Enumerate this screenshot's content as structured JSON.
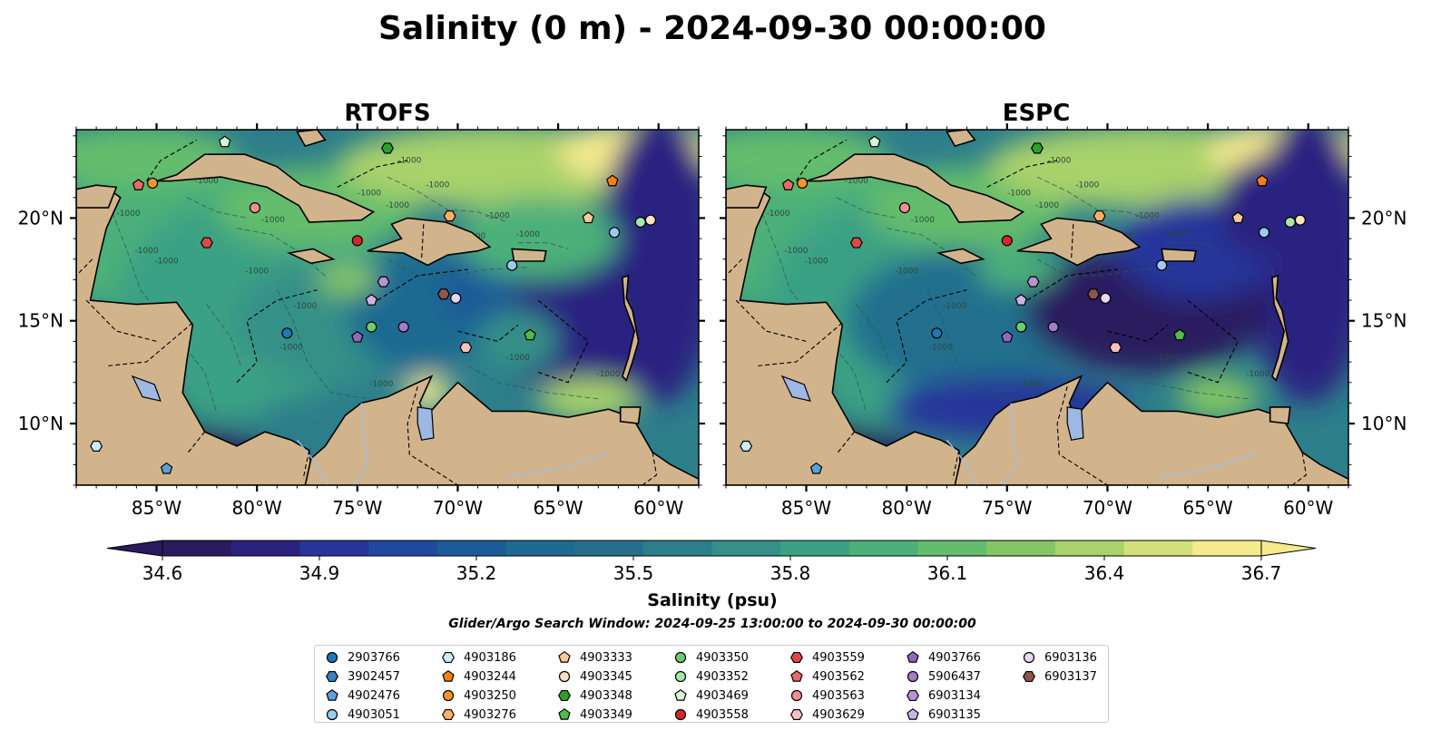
{
  "figure": {
    "title": "Salinity (0 m) - 2024-09-30 00:00:00",
    "search_window": "Glider/Argo Search Window: 2024-09-25 13:00:00 to 2024-09-30 00:00:00"
  },
  "panels": [
    {
      "title": "RTOFS",
      "model": "rtofs"
    },
    {
      "title": "ESPC",
      "model": "espc"
    }
  ],
  "axes": {
    "lon_range": [
      -89,
      -58
    ],
    "lat_range": [
      7,
      24.3
    ],
    "lon_ticks": [
      -85,
      -80,
      -75,
      -70,
      -65,
      -60
    ],
    "lon_tick_labels": [
      "85°W",
      "80°W",
      "75°W",
      "70°W",
      "65°W",
      "60°W"
    ],
    "lat_ticks": [
      10,
      15,
      20
    ],
    "lat_tick_labels": [
      "10°N",
      "15°N",
      "20°N"
    ]
  },
  "contour_label": "-1000",
  "colorbar": {
    "label": "Salinity (psu)",
    "min": 34.6,
    "max": 36.7,
    "ticks": [
      34.6,
      34.9,
      35.2,
      35.5,
      35.8,
      36.1,
      36.4,
      36.7
    ],
    "tick_labels": [
      "34.6",
      "34.9",
      "35.2",
      "35.5",
      "35.8",
      "36.1",
      "36.4",
      "36.7"
    ],
    "extend": "both",
    "colors": [
      "#2a1a5e",
      "#2b2280",
      "#27349a",
      "#1f489f",
      "#1a5c98",
      "#1d6a92",
      "#246f8e",
      "#2d7e8b",
      "#349088",
      "#3ba184",
      "#4bb079",
      "#64bd6c",
      "#84c663",
      "#a8d26a",
      "#d3e07a",
      "#f6ea8d"
    ]
  },
  "land_color": "#d2b48c",
  "chart_data": {
    "type": "scatter",
    "title": "Salinity (0 m) - 2024-09-30 00:00:00",
    "xlabel": "",
    "ylabel": "",
    "x_units": "degrees longitude (W negative)",
    "y_units": "degrees latitude",
    "series": [
      {
        "name": "2903766",
        "marker": "circle",
        "color": "#1f77b4",
        "points": [
          [
            -78.5,
            14.4
          ]
        ]
      },
      {
        "name": "3902457",
        "marker": "hexagon",
        "color": "#3a7fc0",
        "points": []
      },
      {
        "name": "4902476",
        "marker": "pentagon",
        "color": "#5aa0da",
        "points": [
          [
            -84.5,
            7.8
          ]
        ]
      },
      {
        "name": "4903051",
        "marker": "circle",
        "color": "#9ccbef",
        "points": [
          [
            -62.2,
            19.3
          ],
          [
            -67.3,
            17.7
          ]
        ]
      },
      {
        "name": "4903186",
        "marker": "hexagon",
        "color": "#c8ecf8",
        "points": [
          [
            -88.0,
            8.9
          ]
        ]
      },
      {
        "name": "4903244",
        "marker": "pentagon",
        "color": "#ff7f0e",
        "points": [
          [
            -62.3,
            21.8
          ]
        ]
      },
      {
        "name": "4903250",
        "marker": "circle",
        "color": "#ff9232",
        "points": [
          [
            -85.2,
            21.7
          ]
        ]
      },
      {
        "name": "4903276",
        "marker": "hexagon",
        "color": "#ffae62",
        "points": [
          [
            -70.4,
            20.1
          ]
        ]
      },
      {
        "name": "4903333",
        "marker": "pentagon",
        "color": "#ffc994",
        "points": [
          [
            -63.5,
            20.0
          ]
        ]
      },
      {
        "name": "4903345",
        "marker": "circle",
        "color": "#ffe0c0",
        "points": [
          [
            -60.4,
            19.9
          ]
        ]
      },
      {
        "name": "4903348",
        "marker": "hexagon",
        "color": "#2ca02c",
        "points": [
          [
            -73.5,
            23.4
          ]
        ]
      },
      {
        "name": "4903349",
        "marker": "pentagon",
        "color": "#4cbc4c",
        "points": [
          [
            -66.4,
            14.3
          ]
        ]
      },
      {
        "name": "4903350",
        "marker": "circle",
        "color": "#6dcc6d",
        "points": [
          [
            -74.3,
            14.7
          ]
        ]
      },
      {
        "name": "4903352",
        "marker": "circle",
        "color": "#a6e6a6",
        "points": [
          [
            -60.9,
            19.8
          ]
        ]
      },
      {
        "name": "4903469",
        "marker": "pentagon",
        "color": "#d5f7d5",
        "points": [
          [
            -81.6,
            23.7
          ]
        ]
      },
      {
        "name": "4903558",
        "marker": "circle",
        "color": "#d62728",
        "points": [
          [
            -75.0,
            18.9
          ]
        ]
      },
      {
        "name": "4903559",
        "marker": "hexagon",
        "color": "#e04848",
        "points": [
          [
            -82.5,
            18.8
          ]
        ]
      },
      {
        "name": "4903562",
        "marker": "pentagon",
        "color": "#e96a6a",
        "points": [
          [
            -85.9,
            21.6
          ]
        ]
      },
      {
        "name": "4903563",
        "marker": "circle",
        "color": "#f08f8f",
        "points": [
          [
            -80.1,
            20.5
          ]
        ]
      },
      {
        "name": "4903629",
        "marker": "hexagon",
        "color": "#f8c0c0",
        "points": [
          [
            -69.6,
            13.7
          ]
        ]
      },
      {
        "name": "4903766",
        "marker": "pentagon",
        "color": "#9467bd",
        "points": [
          [
            -75.0,
            14.2
          ]
        ]
      },
      {
        "name": "5906437",
        "marker": "circle",
        "color": "#a47cc8",
        "points": [
          [
            -72.7,
            14.7
          ]
        ]
      },
      {
        "name": "6903134",
        "marker": "hexagon",
        "color": "#b593d4",
        "points": [
          [
            -73.7,
            16.9
          ]
        ]
      },
      {
        "name": "6903135",
        "marker": "pentagon",
        "color": "#ccb3e4",
        "points": [
          [
            -74.3,
            16.0
          ]
        ]
      },
      {
        "name": "6903136",
        "marker": "circle",
        "color": "#e8d6f4",
        "points": [
          [
            -70.1,
            16.1
          ]
        ]
      },
      {
        "name": "6903137",
        "marker": "hexagon",
        "color": "#8c564b",
        "points": [
          [
            -70.7,
            16.3
          ]
        ]
      }
    ]
  }
}
